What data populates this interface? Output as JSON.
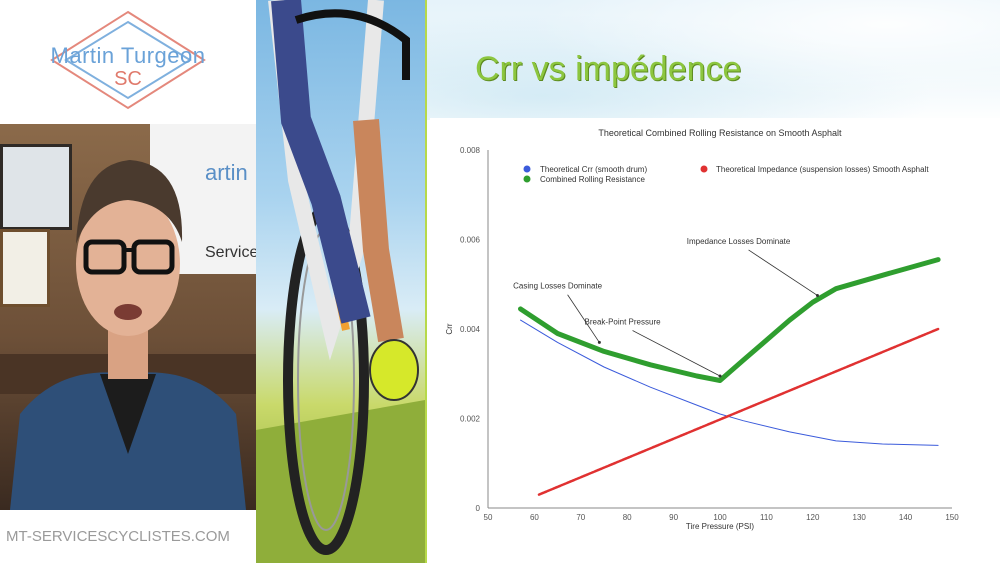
{
  "logo": {
    "line1": "Martin Turgeon",
    "line2": "SC"
  },
  "webcam": {
    "banner_text": "artin",
    "banner_sub": "Service"
  },
  "site_url": "MT-SERVICESCYCLISTES.COM",
  "slide": {
    "title": "Crr vs impédence"
  },
  "chart_data": {
    "type": "line",
    "title": "Theoretical Combined Rolling Resistance on Smooth Asphalt",
    "xlabel": "Tire Pressure (PSI)",
    "ylabel": "Crr",
    "xlim": [
      50,
      150
    ],
    "ylim": [
      0,
      0.008
    ],
    "x_ticks": [
      50,
      60,
      70,
      80,
      90,
      100,
      110,
      120,
      130,
      140,
      150
    ],
    "x_tick_labels": [
      "50",
      "60",
      "70",
      "80",
      "90",
      "100",
      "110",
      "120",
      "130",
      "140",
      "150"
    ],
    "y_ticks": [
      0,
      0.002,
      0.004,
      0.006,
      0.008
    ],
    "y_tick_labels": [
      "0",
      "0.002",
      "0.004",
      "0.006",
      "0.008"
    ],
    "grid": false,
    "legend_position": "top",
    "series": [
      {
        "name": "Theoretical Crr (smooth drum)",
        "color": "#3b5bdb",
        "x": [
          57,
          65,
          75,
          85,
          95,
          100,
          105,
          115,
          125,
          135,
          147
        ],
        "y": [
          0.0042,
          0.0037,
          0.00315,
          0.0027,
          0.0023,
          0.0021,
          0.00195,
          0.0017,
          0.0015,
          0.00143,
          0.0014
        ]
      },
      {
        "name": "Theoretical Impedance (suspension losses) Smooth Asphalt",
        "color": "#e03131",
        "x": [
          61,
          147
        ],
        "y": [
          0.0003,
          0.004
        ]
      },
      {
        "name": "Combined Rolling Resistance",
        "color": "#2f9e2f",
        "x": [
          57,
          65,
          75,
          85,
          95,
          100,
          105,
          115,
          120,
          125,
          135,
          147
        ],
        "y": [
          0.00445,
          0.0039,
          0.0035,
          0.0032,
          0.00295,
          0.00285,
          0.0033,
          0.0042,
          0.0046,
          0.0049,
          0.0052,
          0.00555
        ]
      }
    ],
    "annotations": [
      {
        "text": "Casing Losses Dominate",
        "x": 65,
        "y": 0.0049,
        "point_x": 74,
        "point_y": 0.0037
      },
      {
        "text": "Break-Point Pressure",
        "x": 79,
        "y": 0.0041,
        "point_x": 100,
        "point_y": 0.00295
      },
      {
        "text": "Impedance Losses Dominate",
        "x": 104,
        "y": 0.0059,
        "point_x": 121,
        "point_y": 0.00475
      }
    ]
  }
}
